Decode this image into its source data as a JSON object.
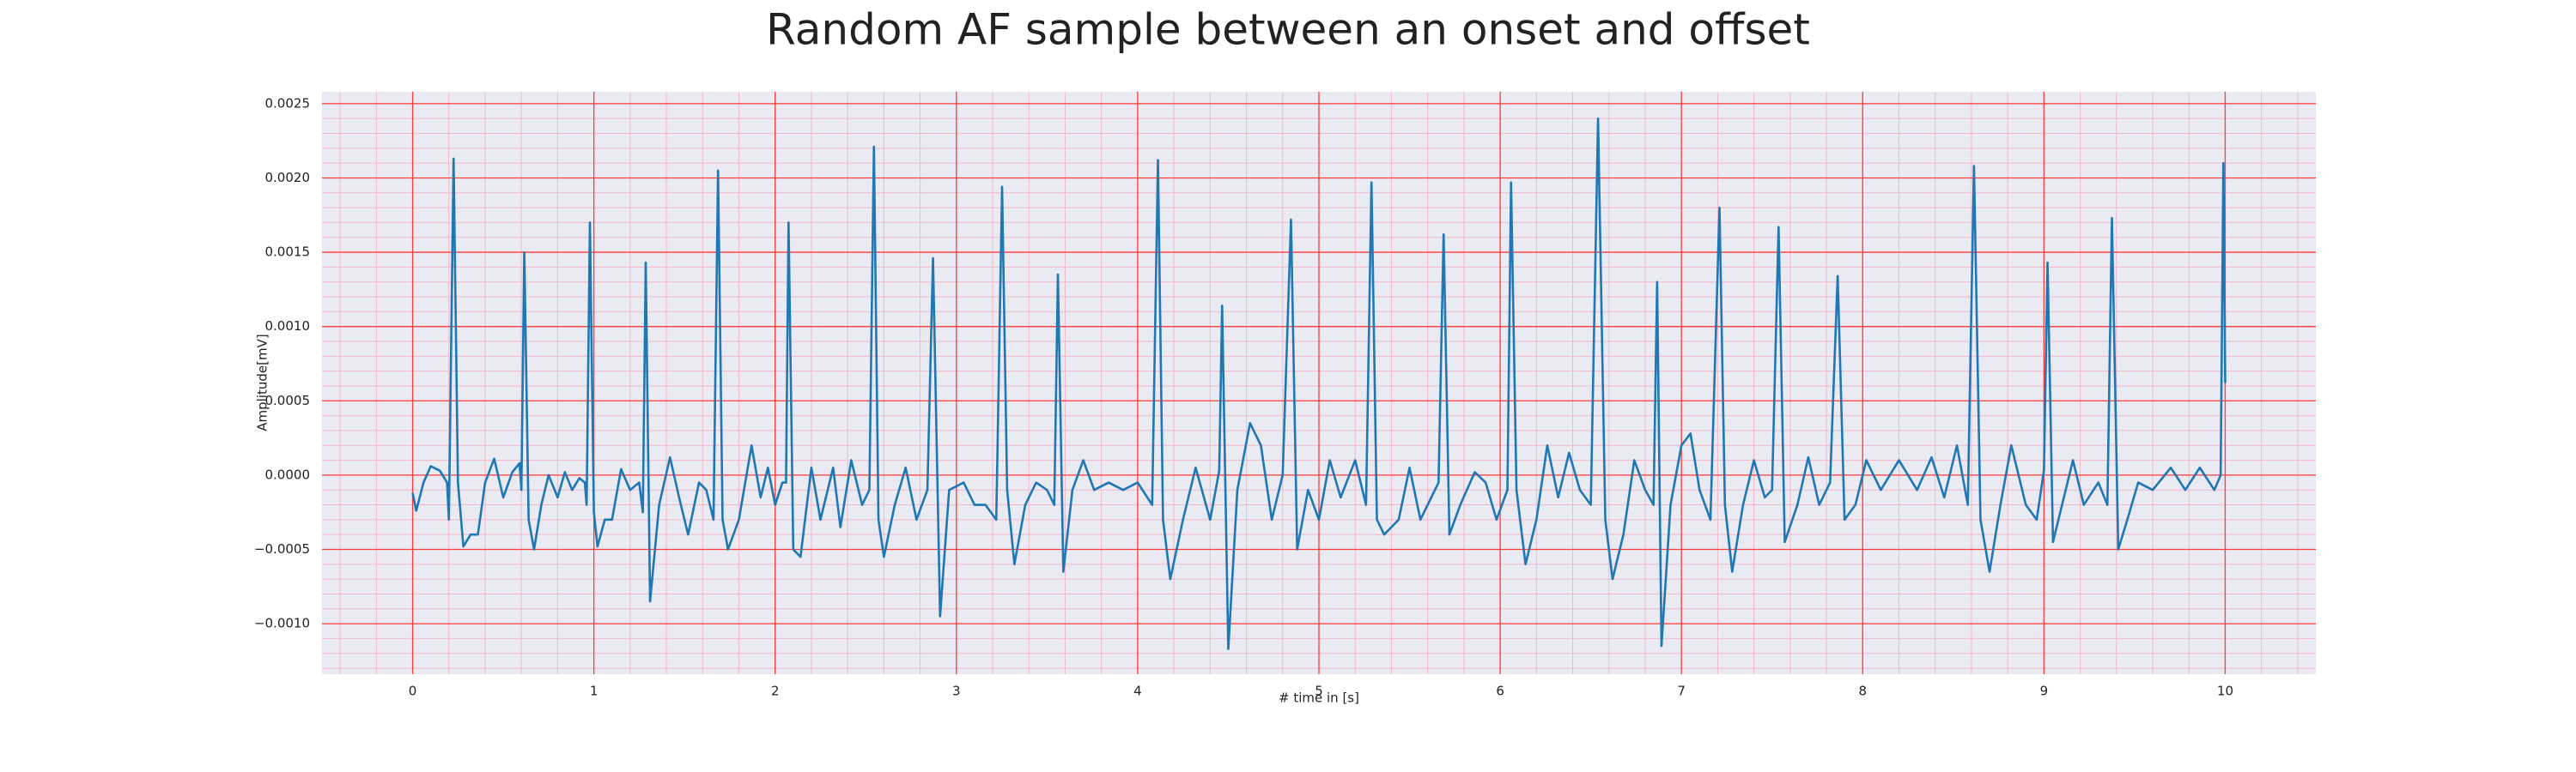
{
  "chart_data": {
    "type": "line",
    "title": "Random AF sample between an onset and offset",
    "xlabel": "# time in [s]",
    "ylabel": "Amplitude[mV]",
    "xlim": [
      -0.5,
      10.5
    ],
    "ylim": [
      -0.00134,
      0.00258
    ],
    "xticks": [
      0,
      1,
      2,
      3,
      4,
      5,
      6,
      7,
      8,
      9,
      10
    ],
    "yticks": [
      {
        "value": -0.001,
        "label": "−0.0010"
      },
      {
        "value": -0.0005,
        "label": "−0.0005"
      },
      {
        "value": 0,
        "label": "0.0000"
      },
      {
        "value": 0.0005,
        "label": "0.0005"
      },
      {
        "value": 0.001,
        "label": "0.0010"
      },
      {
        "value": 0.0015,
        "label": "0.0015"
      },
      {
        "value": 0.002,
        "label": "0.0020"
      },
      {
        "value": 0.0025,
        "label": "0.0025"
      }
    ],
    "grid": true,
    "minor_grid": true,
    "grid_color": "#ff3b3b",
    "minor_grid_color": "#f4b8c8",
    "background": "#eaeaf2",
    "x": [
      0,
      0.02,
      0.06,
      0.1,
      0.15,
      0.19,
      0.2,
      0.226,
      0.25,
      0.28,
      0.32,
      0.36,
      0.4,
      0.45,
      0.5,
      0.55,
      0.59,
      0.6,
      0.616,
      0.64,
      0.67,
      0.71,
      0.75,
      0.8,
      0.84,
      0.88,
      0.92,
      0.95,
      0.96,
      0.978,
      1.0,
      1.02,
      1.06,
      1.1,
      1.15,
      1.2,
      1.25,
      1.27,
      1.286,
      1.31,
      1.36,
      1.42,
      1.47,
      1.52,
      1.58,
      1.62,
      1.66,
      1.685,
      1.71,
      1.74,
      1.8,
      1.87,
      1.92,
      1.96,
      2.0,
      2.04,
      2.06,
      2.074,
      2.1,
      2.14,
      2.2,
      2.25,
      2.32,
      2.36,
      2.42,
      2.48,
      2.52,
      2.545,
      2.57,
      2.6,
      2.66,
      2.72,
      2.78,
      2.84,
      2.871,
      2.91,
      2.96,
      3.04,
      3.1,
      3.16,
      3.22,
      3.252,
      3.28,
      3.32,
      3.38,
      3.44,
      3.5,
      3.54,
      3.56,
      3.59,
      3.64,
      3.7,
      3.76,
      3.84,
      3.92,
      4.0,
      4.08,
      4.112,
      4.14,
      4.18,
      4.25,
      4.32,
      4.4,
      4.45,
      4.466,
      4.5,
      4.55,
      4.62,
      4.68,
      4.74,
      4.8,
      4.846,
      4.88,
      4.94,
      5.0,
      5.06,
      5.12,
      5.2,
      5.26,
      5.29,
      5.32,
      5.36,
      5.44,
      5.5,
      5.56,
      5.62,
      5.66,
      5.688,
      5.72,
      5.78,
      5.86,
      5.92,
      5.98,
      6.04,
      6.06,
      6.09,
      6.14,
      6.2,
      6.26,
      6.32,
      6.38,
      6.44,
      6.5,
      6.54,
      6.58,
      6.62,
      6.68,
      6.74,
      6.8,
      6.846,
      6.866,
      6.89,
      6.94,
      7.0,
      7.05,
      7.1,
      7.16,
      7.21,
      7.24,
      7.28,
      7.34,
      7.4,
      7.46,
      7.5,
      7.536,
      7.57,
      7.64,
      7.7,
      7.76,
      7.82,
      7.862,
      7.9,
      7.96,
      8.02,
      8.1,
      8.2,
      8.3,
      8.38,
      8.45,
      8.52,
      8.58,
      8.614,
      8.65,
      8.7,
      8.76,
      8.82,
      8.9,
      8.96,
      9.0,
      9.02,
      9.05,
      9.1,
      9.16,
      9.22,
      9.3,
      9.35,
      9.375,
      9.41,
      9.46,
      9.52,
      9.6,
      9.7,
      9.78,
      9.86,
      9.94,
      9.975,
      9.99,
      10.0
    ],
    "series": [
      {
        "color": "#1f77b4",
        "values": [
          -0.00012,
          -0.00024,
          -5e-05,
          6e-05,
          3e-05,
          -5e-05,
          -0.0003,
          0.00213,
          -5e-05,
          -0.00048,
          -0.0004,
          -0.0004,
          -5e-05,
          0.00011,
          -0.00015,
          2e-05,
          8e-05,
          -0.0001,
          0.0015,
          -0.0003,
          -0.0005,
          -0.0002,
          0.0,
          -0.00015,
          2e-05,
          -0.0001,
          -2e-05,
          -5e-05,
          -0.0002,
          0.0017,
          -0.00025,
          -0.00048,
          -0.0003,
          -0.0003,
          4e-05,
          -0.0001,
          -5e-05,
          -0.00025,
          0.00143,
          -0.00085,
          -0.0002,
          0.00012,
          -0.00015,
          -0.0004,
          -5e-05,
          -0.0001,
          -0.0003,
          0.00205,
          -0.0003,
          -0.0005,
          -0.0003,
          0.0002,
          -0.00015,
          5e-05,
          -0.0002,
          -5e-05,
          -5e-05,
          0.0017,
          -0.0005,
          -0.00055,
          5e-05,
          -0.0003,
          5e-05,
          -0.00035,
          0.0001,
          -0.0002,
          -0.0001,
          0.00221,
          -0.0003,
          -0.00055,
          -0.0002,
          5e-05,
          -0.0003,
          -0.0001,
          0.00146,
          -0.00095,
          -0.0001,
          -5e-05,
          -0.0002,
          -0.0002,
          -0.0003,
          0.00194,
          -0.0001,
          -0.0006,
          -0.0002,
          -5e-05,
          -0.0001,
          -0.0002,
          0.00135,
          -0.00065,
          -0.0001,
          0.0001,
          -0.0001,
          -5e-05,
          -0.0001,
          -5e-05,
          -0.0002,
          0.00212,
          -0.0003,
          -0.0007,
          -0.0003,
          5e-05,
          -0.0003,
          3e-05,
          0.00114,
          -0.00117,
          -0.0001,
          0.00035,
          0.0002,
          -0.0003,
          0.0,
          0.00172,
          -0.0005,
          -0.0001,
          -0.0003,
          0.0001,
          -0.00015,
          0.0001,
          -0.0002,
          0.00197,
          -0.0003,
          -0.0004,
          -0.0003,
          5e-05,
          -0.0003,
          -0.00015,
          -5e-05,
          0.00162,
          -0.0004,
          -0.0002,
          2e-05,
          -5e-05,
          -0.0003,
          -0.0001,
          0.00197,
          -0.0001,
          -0.0006,
          -0.0003,
          0.0002,
          -0.00015,
          0.00015,
          -0.0001,
          -0.0002,
          0.0024,
          -0.0003,
          -0.0007,
          -0.0004,
          0.0001,
          -0.0001,
          -0.0002,
          0.0013,
          -0.00115,
          -0.0002,
          0.0002,
          0.00028,
          -0.0001,
          -0.0003,
          0.0018,
          -0.0002,
          -0.00065,
          -0.0002,
          0.0001,
          -0.00015,
          -0.0001,
          0.00167,
          -0.00045,
          -0.0002,
          0.00012,
          -0.0002,
          -5e-05,
          0.00134,
          -0.0003,
          -0.0002,
          0.0001,
          -0.0001,
          0.0001,
          -0.0001,
          0.00012,
          -0.00015,
          0.0002,
          -0.0002,
          0.00208,
          -0.0003,
          -0.00065,
          -0.0002,
          0.0002,
          -0.0002,
          -0.0003,
          3e-05,
          0.00143,
          -0.00045,
          -0.0002,
          0.0001,
          -0.0002,
          -5e-05,
          -0.0002,
          0.00173,
          -0.0005,
          -0.0003,
          -5e-05,
          -0.0001,
          5e-05,
          -0.0001,
          5e-05,
          -0.0001,
          0.0,
          0.0021,
          0.00062
        ]
      }
    ]
  }
}
